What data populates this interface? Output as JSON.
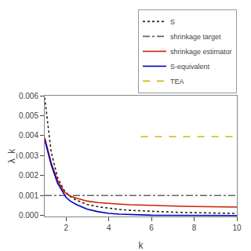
{
  "chart_data": {
    "type": "line",
    "xlabel": "k",
    "ylabel": "λ_k",
    "x": [
      1,
      1.3,
      1.6,
      1.9,
      2.0,
      2.2,
      2.5,
      2.8,
      3.0,
      3.5,
      4.0,
      4.5,
      5.0,
      5.5,
      6.0,
      6.5,
      7.0,
      7.5,
      8.0,
      8.5,
      9.0,
      9.5,
      10.0
    ],
    "xlim": [
      1,
      10
    ],
    "xticks": [
      2,
      4,
      6,
      8,
      10
    ],
    "ylim": [
      -5e-05,
      0.006
    ],
    "yticks": [
      {
        "value": 0.0,
        "label": "0.000"
      },
      {
        "value": 0.001,
        "label": "0.001"
      },
      {
        "value": 0.002,
        "label": "0.002"
      },
      {
        "value": 0.003,
        "label": "0.003"
      },
      {
        "value": 0.004,
        "label": "0.004"
      },
      {
        "value": 0.005,
        "label": "0.005"
      },
      {
        "value": 0.006,
        "label": "0.006"
      }
    ],
    "grid": false,
    "legend": "upper right",
    "series": [
      {
        "name": "S",
        "color": "#222222",
        "line_style": "dotted",
        "values": [
          0.0059,
          0.0032,
          0.0019,
          0.00128,
          0.00115,
          0.00095,
          0.00076,
          0.00062,
          0.00055,
          0.00044,
          0.00036,
          0.0003,
          0.00026,
          0.00023,
          0.0002,
          0.00018,
          0.000165,
          0.00015,
          0.000138,
          0.000128,
          0.000118,
          0.00011,
          0.000103
        ]
      },
      {
        "name": "shrinkage target",
        "color": "#666666",
        "line_style": "dashdot",
        "x": [
          1,
          10
        ],
        "values": [
          0.001,
          0.001
        ]
      },
      {
        "name": "shrinkage estimator",
        "color": "#cc2200",
        "line_style": "solid",
        "values": [
          0.0039,
          0.00265,
          0.00175,
          0.0012,
          0.0011,
          0.00097,
          0.00086,
          0.00077,
          0.00072,
          0.00065,
          0.0006,
          0.00057,
          0.00054,
          0.00052,
          0.0005,
          0.00048,
          0.00047,
          0.00046,
          0.00045,
          0.00044,
          0.00043,
          0.00042,
          0.00042
        ]
      },
      {
        "name": "S-equivalent",
        "color": "#0000bb",
        "line_style": "solid",
        "values": [
          0.0038,
          0.00255,
          0.00162,
          0.00105,
          0.0009,
          0.00072,
          0.00054,
          0.0004,
          0.00031,
          0.00019,
          0.00011,
          6.5e-05,
          3.8e-05,
          2.2e-05,
          1.3e-05,
          8.5e-06,
          6e-06,
          4.5e-06,
          3.5e-06,
          2.8e-06,
          2.3e-06,
          1.9e-06,
          1.6e-06
        ]
      },
      {
        "name": "TEA",
        "color": "#ccbb00",
        "line_style": "dashed",
        "x": [
          5.5,
          10.0
        ],
        "values": [
          0.00395,
          0.00395
        ]
      }
    ]
  }
}
